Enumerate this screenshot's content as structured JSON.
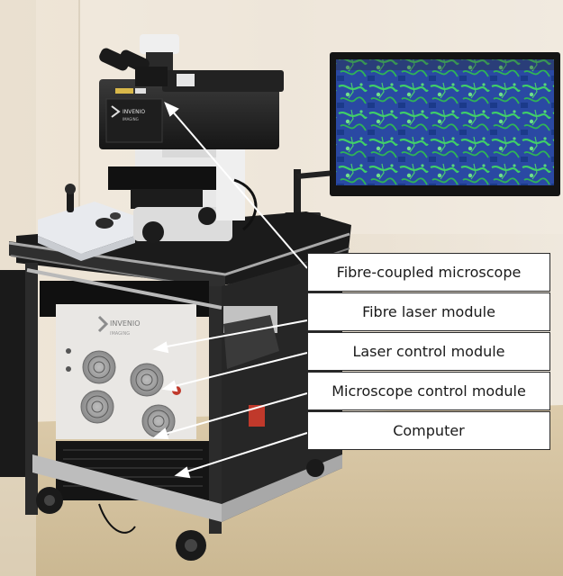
{
  "labels": [
    "Fibre-coupled microscope",
    "Fibre laser module",
    "Laser control module",
    "Microscope control module",
    "Computer"
  ],
  "brand": {
    "name": "INVENIO",
    "sub": "IMAGING"
  },
  "colors": {
    "wall": "#ece3d6",
    "floor": "#d8c7a4",
    "cart_frame": "#2b2b2b",
    "cart_rail": "#b7b7b7",
    "rack_panel": "#e9e7e4",
    "monitor_frame": "#141414",
    "screen_bg": "#1e3a8c",
    "screen_green": "#37c65b",
    "arrow": "#ffffff",
    "label_bg": "#ffffff",
    "label_border": "#2a2a2a"
  }
}
